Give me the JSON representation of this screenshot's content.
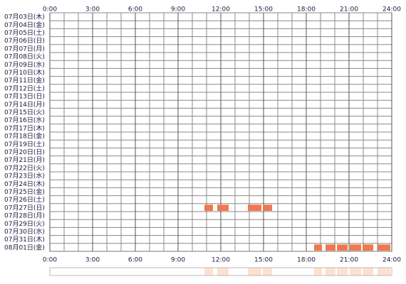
{
  "chart_data": {
    "type": "timeline",
    "categories": [
      "07月03日(木)",
      "07月04日(金)",
      "07月05日(土)",
      "07月06日(日)",
      "07月07日(月)",
      "07月08日(火)",
      "07月09日(水)",
      "07月10日(木)",
      "07月11日(金)",
      "07月12日(土)",
      "07月13日(日)",
      "07月14日(月)",
      "07月15日(火)",
      "07月16日(水)",
      "07月17日(木)",
      "07月18日(金)",
      "07月19日(土)",
      "07月20日(日)",
      "07月21日(月)",
      "07月22日(火)",
      "07月23日(水)",
      "07月24日(木)",
      "07月25日(金)",
      "07月26日(土)",
      "07月27日(日)",
      "07月28日(月)",
      "07月29日(火)",
      "07月30日(水)",
      "07月31日(木)",
      "08月01日(金)"
    ],
    "segments": [
      [],
      [],
      [],
      [],
      [],
      [],
      [],
      [],
      [],
      [],
      [],
      [],
      [],
      [],
      [],
      [],
      [],
      [],
      [],
      [],
      [],
      [],
      [],
      [],
      [
        [
          10.85,
          11.45
        ],
        [
          11.75,
          12.55
        ],
        [
          13.9,
          14.85
        ],
        [
          14.95,
          15.6
        ]
      ],
      [],
      [],
      [],
      [],
      [
        [
          18.55,
          19.1
        ],
        [
          19.35,
          20.05
        ],
        [
          20.15,
          20.9
        ],
        [
          21.05,
          21.85
        ],
        [
          21.95,
          22.7
        ],
        [
          23.0,
          23.9
        ]
      ]
    ],
    "color": "#f07850",
    "summary_color": "#fde0d0",
    "xlim": [
      0,
      24
    ],
    "xticks": [
      {
        "value": 0,
        "label": "0:00"
      },
      {
        "value": 3,
        "label": "3:00"
      },
      {
        "value": 6,
        "label": "6:00"
      },
      {
        "value": 9,
        "label": "9:00"
      },
      {
        "value": 12,
        "label": "12:00"
      },
      {
        "value": 15,
        "label": "15:00"
      },
      {
        "value": 18,
        "label": "18:00"
      },
      {
        "value": 21,
        "label": "21:00"
      },
      {
        "value": 24,
        "label": "24:00"
      }
    ],
    "grid_step": 1
  }
}
